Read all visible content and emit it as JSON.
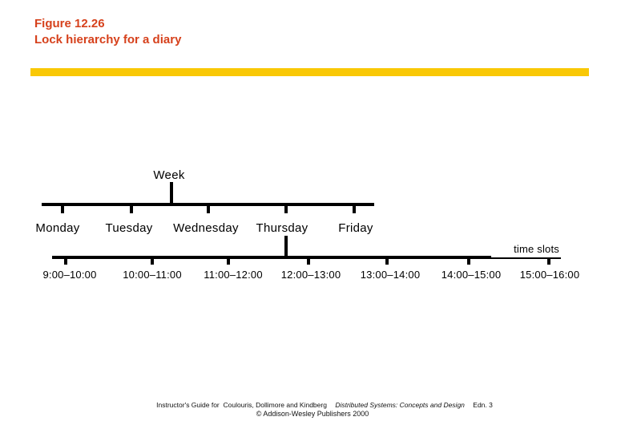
{
  "title": {
    "line1": "Figure 12.26",
    "line2": "Lock hierarchy for a diary"
  },
  "colors": {
    "title_text": "#d6411c",
    "accent_bar": "#f9c806",
    "diagram": "#000000"
  },
  "diagram": {
    "root_label": "Week",
    "days": [
      "Monday",
      "Tuesday",
      "Wednesday",
      "Thursday",
      "Friday"
    ],
    "expanded_day": "Thursday",
    "time_slots_label": "time slots",
    "time_slots": [
      "9:00–10:00",
      "10:00–11:00",
      "11:00–12:00",
      "12:00–13:00",
      "13:00–14:00",
      "14:00–15:00",
      "15:00–16:00"
    ]
  },
  "footer": {
    "line1_guide": "Instructor's Guide for  Coulouris, Dollimore and Kindberg",
    "line1_book": "Distributed Systems: Concepts and Design",
    "line1_edition": "Edn. 3",
    "line2": "© Addison-Wesley Publishers 2000"
  }
}
